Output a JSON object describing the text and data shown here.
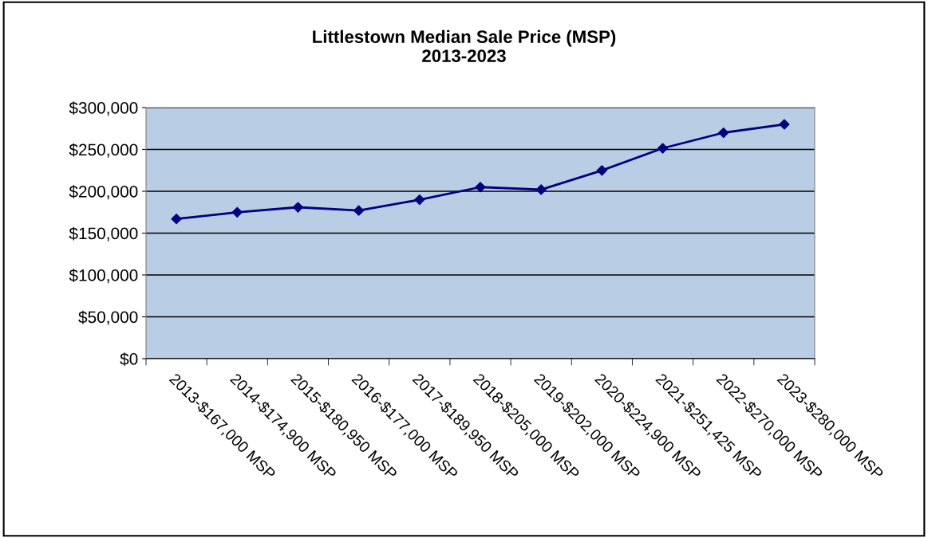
{
  "chart_data": {
    "type": "line",
    "title": "Littlestown Median Sale Price (MSP)\n2013-2023",
    "categories": [
      "2013-$167,000 MSP",
      "2014-$174,900 MSP",
      "2015-$180,950 MSP",
      "2016-$177,000 MSP",
      "2017-$189,950 MSP",
      "2018-$205,000 MSP",
      "2019-$202,000 MSP",
      "2020-$224,900 MSP",
      "2021-$251,425 MSP",
      "2022-$270,000 MSP",
      "2023-$280,000 MSP"
    ],
    "series": [
      {
        "color": "#000080",
        "values": [
          167000,
          174900,
          180950,
          177000,
          189950,
          205000,
          202000,
          224900,
          251425,
          270000,
          280000
        ]
      }
    ],
    "ylim": [
      0,
      300000
    ],
    "yticks": [
      {
        "value": 0,
        "label": "$0"
      },
      {
        "value": 50000,
        "label": "$50,000"
      },
      {
        "value": 100000,
        "label": "$100,000"
      },
      {
        "value": 150000,
        "label": "$150,000"
      },
      {
        "value": 200000,
        "label": "$200,000"
      },
      {
        "value": 250000,
        "label": "$250,000"
      },
      {
        "value": 300000,
        "label": "$300,000"
      }
    ],
    "grid": "y",
    "marker": "diamond",
    "line_style": "solid"
  }
}
